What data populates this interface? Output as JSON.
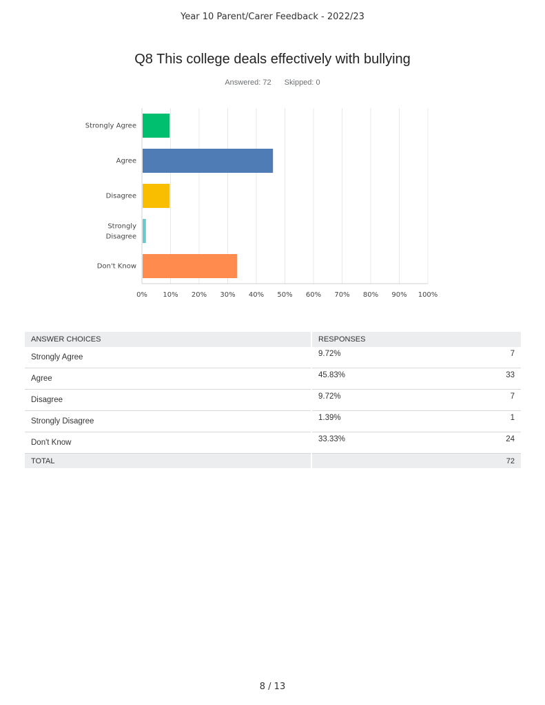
{
  "document_title": "Year 10 Parent/Carer Feedback - 2022/23",
  "question_title": "Q8 This college deals effectively with bullying",
  "answered_label": "Answered: 72",
  "skipped_label": "Skipped: 0",
  "chart_data": {
    "type": "bar",
    "orientation": "horizontal",
    "title": "Q8 This college deals effectively with bullying",
    "categories": [
      "Strongly Agree",
      "Agree",
      "Disagree",
      "Strongly Disagree",
      "Don't Know"
    ],
    "values": [
      9.72,
      45.83,
      9.72,
      1.39,
      33.33
    ],
    "colors": [
      "#00bf6f",
      "#507cb6",
      "#f9be00",
      "#6bc8cd",
      "#ff8b4f"
    ],
    "xlim": [
      0,
      100
    ],
    "xticks": [
      "0%",
      "10%",
      "20%",
      "30%",
      "40%",
      "50%",
      "60%",
      "70%",
      "80%",
      "90%",
      "100%"
    ],
    "xlabel": "",
    "ylabel": "",
    "grid": true
  },
  "table": {
    "headers": [
      "ANSWER CHOICES",
      "RESPONSES"
    ],
    "rows": [
      {
        "choice": "Strongly Agree",
        "percent": "9.72%",
        "count": "7"
      },
      {
        "choice": "Agree",
        "percent": "45.83%",
        "count": "33"
      },
      {
        "choice": "Disagree",
        "percent": "9.72%",
        "count": "7"
      },
      {
        "choice": "Strongly Disagree",
        "percent": "1.39%",
        "count": "1"
      },
      {
        "choice": "Don't Know",
        "percent": "33.33%",
        "count": "24"
      }
    ],
    "total_label": "TOTAL",
    "total_count": "72"
  },
  "page_number": "8 / 13"
}
